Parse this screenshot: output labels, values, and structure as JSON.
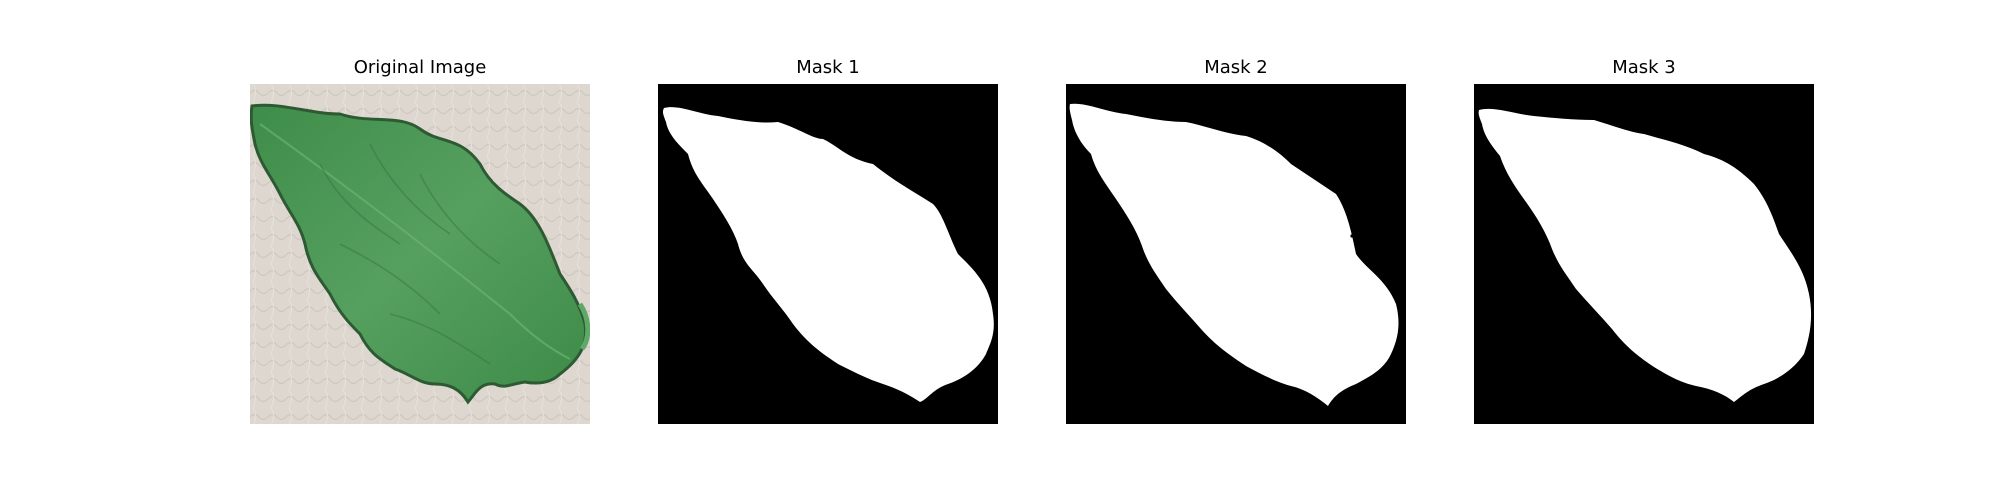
{
  "figure": {
    "panels": [
      {
        "title": "Original Image",
        "kind": "photo"
      },
      {
        "title": "Mask 1",
        "kind": "mask"
      },
      {
        "title": "Mask 2",
        "kind": "mask"
      },
      {
        "title": "Mask 3",
        "kind": "mask"
      }
    ],
    "colors": {
      "leaf": "#4f9a58",
      "leaf_dark": "#2f6b35",
      "background_photo": "#dcd6cf",
      "mask_foreground": "#ffffff",
      "mask_background": "#000000"
    }
  }
}
